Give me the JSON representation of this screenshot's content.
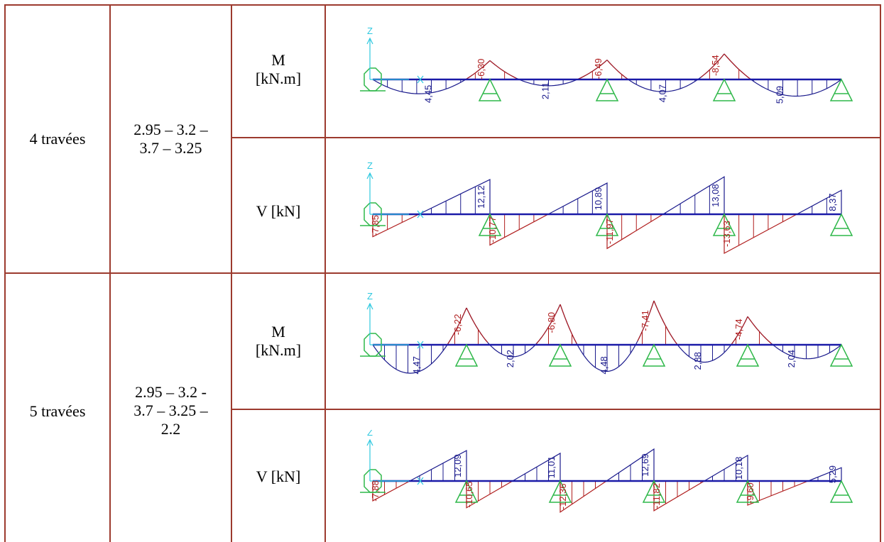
{
  "rows": [
    {
      "label": "4 travées",
      "spans": [
        "2.95 – 3.2 –",
        "3.7 – 3.25"
      ],
      "diagrams": [
        {
          "kind": "moment",
          "quantity": [
            "M",
            "[kN.m]"
          ],
          "values": [
            {
              "text": "4,45",
              "sign": "positive"
            },
            {
              "text": "-6,30",
              "sign": "negative"
            },
            {
              "text": "2,11",
              "sign": "positive"
            },
            {
              "text": "-6,49",
              "sign": "negative"
            },
            {
              "text": "4,07",
              "sign": "positive"
            },
            {
              "text": "-8,54",
              "sign": "negative"
            },
            {
              "text": "5,09",
              "sign": "positive"
            }
          ]
        },
        {
          "kind": "shear",
          "quantity": [
            "V [kN]"
          ],
          "values": [
            {
              "text": "-7,85",
              "sign": "negative"
            },
            {
              "text": "12,12",
              "sign": "positive"
            },
            {
              "text": "-10,77",
              "sign": "negative"
            },
            {
              "text": "10,89",
              "sign": "positive"
            },
            {
              "text": "-11,97",
              "sign": "negative"
            },
            {
              "text": "13,08",
              "sign": "positive"
            },
            {
              "text": "-13,63",
              "sign": "negative"
            },
            {
              "text": "8,37",
              "sign": "positive"
            }
          ]
        }
      ]
    },
    {
      "label": "5 travées",
      "spans": [
        "2.95 – 3.2 -",
        "3.7 – 3.25 –",
        "2.2"
      ],
      "diagrams": [
        {
          "kind": "moment",
          "quantity": [
            "M",
            "[kN.m]"
          ],
          "values": [
            {
              "text": "4,47",
              "sign": "positive"
            },
            {
              "text": "-6,22",
              "sign": "negative"
            },
            {
              "text": "2,02",
              "sign": "positive"
            },
            {
              "text": "-6,80",
              "sign": "negative"
            },
            {
              "text": "4,48",
              "sign": "positive"
            },
            {
              "text": "-7,41",
              "sign": "negative"
            },
            {
              "text": "2,88",
              "sign": "positive"
            },
            {
              "text": "-4,74",
              "sign": "negative"
            },
            {
              "text": "2,04",
              "sign": "positive"
            }
          ]
        },
        {
          "kind": "shear",
          "quantity": [
            "V [kN]"
          ],
          "values": [
            {
              "text": "-7,88",
              "sign": "negative"
            },
            {
              "text": "12,09",
              "sign": "positive"
            },
            {
              "text": "-10,65",
              "sign": "negative"
            },
            {
              "text": "11,01",
              "sign": "positive"
            },
            {
              "text": "-12,36",
              "sign": "negative"
            },
            {
              "text": "12,69",
              "sign": "positive"
            },
            {
              "text": "-11,82",
              "sign": "negative"
            },
            {
              "text": "10,18",
              "sign": "positive"
            },
            {
              "text": "-9,60",
              "sign": "negative"
            },
            {
              "text": "5,29",
              "sign": "positive"
            }
          ]
        }
      ]
    }
  ],
  "axis_label": "Z",
  "colors": {
    "border": "#9c3a2e",
    "beam": "#1a1aa8",
    "positive": "#1a1a8c",
    "negative": "#b01e1e",
    "support": "#2fb84a",
    "axis": "#2ec8e0"
  }
}
